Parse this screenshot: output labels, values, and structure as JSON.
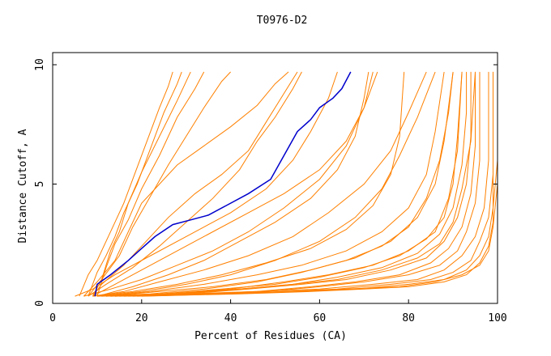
{
  "chart_data": {
    "type": "line",
    "title": "T0976-D2",
    "xlabel": "Percent of Residues (CA)",
    "ylabel": "Distance Cutoff, A",
    "xlim": [
      0,
      100
    ],
    "ylim": [
      0,
      10
    ],
    "x_ticks": [
      "0",
      "20",
      "40",
      "60",
      "80",
      "100"
    ],
    "y_ticks": [
      "0",
      "5",
      "10"
    ],
    "grid": false,
    "colors": {
      "highlight": "#0000cc",
      "others": "#ff8000"
    },
    "highlight_series": {
      "points": [
        [
          9.5,
          0.3
        ],
        [
          10,
          0.8
        ],
        [
          13,
          1.2
        ],
        [
          17,
          1.8
        ],
        [
          20,
          2.3
        ],
        [
          23,
          2.8
        ],
        [
          27,
          3.3
        ],
        [
          31,
          3.5
        ],
        [
          35,
          3.7
        ],
        [
          39,
          4.1
        ],
        [
          44,
          4.6
        ],
        [
          49,
          5.2
        ],
        [
          52,
          6.2
        ],
        [
          55,
          7.2
        ],
        [
          58,
          7.7
        ],
        [
          60,
          8.2
        ],
        [
          63,
          8.6
        ],
        [
          65,
          9.0
        ],
        [
          67,
          9.7
        ]
      ]
    },
    "other_series": [
      [
        [
          6,
          0.3
        ],
        [
          8,
          1.2
        ],
        [
          10,
          1.8
        ],
        [
          12,
          2.6
        ],
        [
          14,
          3.4
        ],
        [
          16,
          4.2
        ],
        [
          18,
          5.2
        ],
        [
          20,
          6.2
        ],
        [
          22,
          7.2
        ],
        [
          24,
          8.2
        ],
        [
          26,
          9.1
        ],
        [
          27,
          9.7
        ]
      ],
      [
        [
          8,
          0.3
        ],
        [
          10,
          1.3
        ],
        [
          12,
          2.0
        ],
        [
          14,
          2.8
        ],
        [
          16,
          3.8
        ],
        [
          19,
          5.0
        ],
        [
          22,
          6.5
        ],
        [
          25,
          8.0
        ],
        [
          28,
          9.2
        ],
        [
          29,
          9.7
        ]
      ],
      [
        [
          9,
          0.3
        ],
        [
          11,
          1.0
        ],
        [
          13,
          2.2
        ],
        [
          15,
          3.0
        ],
        [
          17,
          4.2
        ],
        [
          20,
          5.5
        ],
        [
          24,
          7.0
        ],
        [
          28,
          8.5
        ],
        [
          31,
          9.7
        ]
      ],
      [
        [
          10,
          0.3
        ],
        [
          12,
          1.5
        ],
        [
          14,
          2.5
        ],
        [
          17,
          3.5
        ],
        [
          20,
          4.8
        ],
        [
          24,
          6.2
        ],
        [
          28,
          7.8
        ],
        [
          32,
          9.0
        ],
        [
          34,
          9.7
        ]
      ],
      [
        [
          8,
          0.3
        ],
        [
          11,
          1.0
        ],
        [
          15,
          2.0
        ],
        [
          18,
          3.2
        ],
        [
          22,
          4.5
        ],
        [
          26,
          5.8
        ],
        [
          30,
          7.0
        ],
        [
          34,
          8.2
        ],
        [
          38,
          9.3
        ],
        [
          40,
          9.7
        ]
      ],
      [
        [
          7,
          0.3
        ],
        [
          10,
          0.9
        ],
        [
          14,
          1.8
        ],
        [
          17,
          3.0
        ],
        [
          20,
          4.2
        ],
        [
          24,
          5.0
        ],
        [
          28,
          5.8
        ],
        [
          34,
          6.6
        ],
        [
          40,
          7.4
        ],
        [
          46,
          8.3
        ],
        [
          50,
          9.2
        ],
        [
          53,
          9.7
        ]
      ],
      [
        [
          9,
          0.3
        ],
        [
          11,
          0.8
        ],
        [
          16,
          1.6
        ],
        [
          21,
          2.6
        ],
        [
          26,
          3.6
        ],
        [
          32,
          4.6
        ],
        [
          38,
          5.4
        ],
        [
          44,
          6.4
        ],
        [
          48,
          7.6
        ],
        [
          52,
          8.8
        ],
        [
          55,
          9.7
        ]
      ],
      [
        [
          8,
          0.3
        ],
        [
          12,
          0.8
        ],
        [
          18,
          1.5
        ],
        [
          24,
          2.4
        ],
        [
          30,
          3.4
        ],
        [
          36,
          4.4
        ],
        [
          42,
          5.6
        ],
        [
          46,
          6.8
        ],
        [
          50,
          7.8
        ],
        [
          54,
          9.0
        ],
        [
          56,
          9.7
        ]
      ],
      [
        [
          5,
          0.3
        ],
        [
          9,
          0.6
        ],
        [
          14,
          1.2
        ],
        [
          22,
          2.0
        ],
        [
          30,
          2.8
        ],
        [
          40,
          3.8
        ],
        [
          48,
          4.8
        ],
        [
          54,
          6.0
        ],
        [
          58,
          7.2
        ],
        [
          62,
          8.6
        ],
        [
          64,
          9.7
        ]
      ],
      [
        [
          7,
          0.3
        ],
        [
          13,
          0.6
        ],
        [
          20,
          1.0
        ],
        [
          28,
          1.6
        ],
        [
          36,
          2.2
        ],
        [
          44,
          3.0
        ],
        [
          52,
          4.0
        ],
        [
          60,
          5.2
        ],
        [
          66,
          6.6
        ],
        [
          70,
          8.2
        ],
        [
          73,
          9.7
        ]
      ],
      [
        [
          9,
          0.3
        ],
        [
          16,
          0.5
        ],
        [
          24,
          0.9
        ],
        [
          34,
          1.4
        ],
        [
          44,
          2.0
        ],
        [
          54,
          2.8
        ],
        [
          62,
          3.8
        ],
        [
          70,
          5.0
        ],
        [
          76,
          6.4
        ],
        [
          80,
          8.0
        ],
        [
          84,
          9.7
        ]
      ],
      [
        [
          10,
          0.3
        ],
        [
          20,
          0.5
        ],
        [
          30,
          0.8
        ],
        [
          40,
          1.2
        ],
        [
          50,
          1.8
        ],
        [
          60,
          2.6
        ],
        [
          68,
          3.6
        ],
        [
          74,
          4.8
        ],
        [
          78,
          6.2
        ],
        [
          82,
          7.8
        ],
        [
          86,
          9.7
        ]
      ],
      [
        [
          11,
          0.3
        ],
        [
          22,
          0.5
        ],
        [
          34,
          0.8
        ],
        [
          46,
          1.2
        ],
        [
          56,
          1.6
        ],
        [
          66,
          2.2
        ],
        [
          74,
          3.0
        ],
        [
          80,
          4.0
        ],
        [
          84,
          5.4
        ],
        [
          86,
          7.2
        ],
        [
          88,
          9.7
        ]
      ],
      [
        [
          12,
          0.3
        ],
        [
          24,
          0.5
        ],
        [
          36,
          0.7
        ],
        [
          48,
          1.0
        ],
        [
          58,
          1.4
        ],
        [
          68,
          1.9
        ],
        [
          76,
          2.6
        ],
        [
          82,
          3.6
        ],
        [
          86,
          5.0
        ],
        [
          88,
          6.8
        ],
        [
          90,
          9.7
        ]
      ],
      [
        [
          10,
          0.3
        ],
        [
          22,
          0.4
        ],
        [
          34,
          0.6
        ],
        [
          46,
          0.9
        ],
        [
          56,
          1.3
        ],
        [
          66,
          1.8
        ],
        [
          74,
          2.4
        ],
        [
          80,
          3.2
        ],
        [
          84,
          4.4
        ],
        [
          87,
          6.0
        ],
        [
          89,
          8.0
        ],
        [
          90,
          9.7
        ]
      ],
      [
        [
          12,
          0.3
        ],
        [
          26,
          0.4
        ],
        [
          40,
          0.6
        ],
        [
          52,
          0.9
        ],
        [
          62,
          1.2
        ],
        [
          72,
          1.6
        ],
        [
          80,
          2.2
        ],
        [
          86,
          3.0
        ],
        [
          89,
          4.4
        ],
        [
          91,
          6.4
        ],
        [
          92,
          9.7
        ]
      ],
      [
        [
          14,
          0.3
        ],
        [
          28,
          0.4
        ],
        [
          42,
          0.6
        ],
        [
          54,
          0.8
        ],
        [
          64,
          1.1
        ],
        [
          74,
          1.5
        ],
        [
          82,
          2.1
        ],
        [
          87,
          2.9
        ],
        [
          90,
          4.0
        ],
        [
          92,
          5.8
        ],
        [
          93,
          8.0
        ],
        [
          93,
          9.7
        ]
      ],
      [
        [
          13,
          0.3
        ],
        [
          30,
          0.4
        ],
        [
          44,
          0.6
        ],
        [
          56,
          0.8
        ],
        [
          66,
          1.0
        ],
        [
          76,
          1.4
        ],
        [
          84,
          1.9
        ],
        [
          88,
          2.6
        ],
        [
          91,
          3.6
        ],
        [
          93,
          5.0
        ],
        [
          94,
          7.0
        ],
        [
          94,
          9.7
        ]
      ],
      [
        [
          15,
          0.3
        ],
        [
          32,
          0.4
        ],
        [
          46,
          0.5
        ],
        [
          58,
          0.7
        ],
        [
          68,
          0.9
        ],
        [
          78,
          1.2
        ],
        [
          85,
          1.7
        ],
        [
          89,
          2.3
        ],
        [
          92,
          3.2
        ],
        [
          94,
          4.6
        ],
        [
          95,
          6.6
        ],
        [
          95,
          9.7
        ]
      ],
      [
        [
          16,
          0.3
        ],
        [
          34,
          0.4
        ],
        [
          48,
          0.5
        ],
        [
          60,
          0.7
        ],
        [
          70,
          0.9
        ],
        [
          80,
          1.2
        ],
        [
          87,
          1.6
        ],
        [
          91,
          2.2
        ],
        [
          93,
          3.0
        ],
        [
          95,
          4.2
        ],
        [
          96,
          6.0
        ],
        [
          96,
          9.7
        ]
      ],
      [
        [
          14,
          0.3
        ],
        [
          30,
          0.4
        ],
        [
          46,
          0.5
        ],
        [
          60,
          0.6
        ],
        [
          72,
          0.8
        ],
        [
          82,
          1.0
        ],
        [
          88,
          1.4
        ],
        [
          92,
          2.0
        ],
        [
          95,
          2.8
        ],
        [
          97,
          4.0
        ],
        [
          98,
          6.0
        ],
        [
          98,
          9.7
        ]
      ],
      [
        [
          17,
          0.3
        ],
        [
          36,
          0.4
        ],
        [
          52,
          0.5
        ],
        [
          64,
          0.6
        ],
        [
          76,
          0.8
        ],
        [
          85,
          1.0
        ],
        [
          90,
          1.3
        ],
        [
          94,
          1.8
        ],
        [
          96,
          2.6
        ],
        [
          98,
          3.6
        ],
        [
          99,
          5.4
        ],
        [
          99,
          9.7
        ]
      ],
      [
        [
          18,
          0.3
        ],
        [
          38,
          0.4
        ],
        [
          54,
          0.5
        ],
        [
          66,
          0.6
        ],
        [
          78,
          0.7
        ],
        [
          86,
          0.9
        ],
        [
          92,
          1.2
        ],
        [
          96,
          1.6
        ],
        [
          98,
          2.2
        ],
        [
          99,
          3.2
        ],
        [
          100,
          5.0
        ],
        [
          100,
          9.7
        ]
      ],
      [
        [
          11,
          0.3
        ],
        [
          24,
          0.4
        ],
        [
          38,
          0.6
        ],
        [
          50,
          0.8
        ],
        [
          60,
          1.1
        ],
        [
          70,
          1.5
        ],
        [
          78,
          2.0
        ],
        [
          84,
          2.7
        ],
        [
          88,
          3.6
        ],
        [
          90,
          5.0
        ],
        [
          91,
          7.0
        ],
        [
          92,
          9.7
        ]
      ],
      [
        [
          13,
          0.3
        ],
        [
          28,
          0.4
        ],
        [
          42,
          0.6
        ],
        [
          54,
          0.8
        ],
        [
          64,
          1.0
        ],
        [
          74,
          1.4
        ],
        [
          82,
          1.9
        ],
        [
          87,
          2.5
        ],
        [
          90,
          3.4
        ],
        [
          92,
          4.8
        ],
        [
          94,
          6.8
        ],
        [
          95,
          9.7
        ]
      ],
      [
        [
          9,
          0.3
        ],
        [
          18,
          0.5
        ],
        [
          28,
          0.8
        ],
        [
          38,
          1.2
        ],
        [
          48,
          1.7
        ],
        [
          58,
          2.3
        ],
        [
          66,
          3.1
        ],
        [
          72,
          4.1
        ],
        [
          76,
          5.4
        ],
        [
          78,
          7.0
        ],
        [
          79,
          9.7
        ]
      ],
      [
        [
          10,
          0.3
        ],
        [
          18,
          0.7
        ],
        [
          26,
          1.2
        ],
        [
          34,
          1.8
        ],
        [
          42,
          2.6
        ],
        [
          50,
          3.4
        ],
        [
          58,
          4.4
        ],
        [
          64,
          5.6
        ],
        [
          68,
          7.0
        ],
        [
          70,
          8.6
        ],
        [
          71,
          9.7
        ]
      ],
      [
        [
          9,
          0.3
        ],
        [
          14,
          0.8
        ],
        [
          20,
          1.4
        ],
        [
          28,
          2.2
        ],
        [
          36,
          3.0
        ],
        [
          44,
          3.8
        ],
        [
          52,
          4.6
        ],
        [
          60,
          5.6
        ],
        [
          66,
          6.8
        ],
        [
          70,
          8.2
        ],
        [
          72,
          9.7
        ]
      ],
      [
        [
          20,
          0.3
        ],
        [
          42,
          0.4
        ],
        [
          58,
          0.5
        ],
        [
          70,
          0.6
        ],
        [
          80,
          0.7
        ],
        [
          88,
          0.9
        ],
        [
          93,
          1.2
        ],
        [
          96,
          1.7
        ],
        [
          98,
          2.4
        ],
        [
          99,
          3.4
        ],
        [
          99,
          5.2
        ],
        [
          99,
          9.7
        ]
      ],
      [
        [
          19,
          0.3
        ],
        [
          40,
          0.4
        ],
        [
          56,
          0.5
        ],
        [
          68,
          0.6
        ],
        [
          80,
          0.8
        ],
        [
          88,
          1.0
        ],
        [
          93,
          1.4
        ],
        [
          96,
          2.0
        ],
        [
          98,
          2.8
        ],
        [
          99,
          4.0
        ],
        [
          100,
          6.0
        ],
        [
          100,
          9.7
        ]
      ]
    ]
  }
}
